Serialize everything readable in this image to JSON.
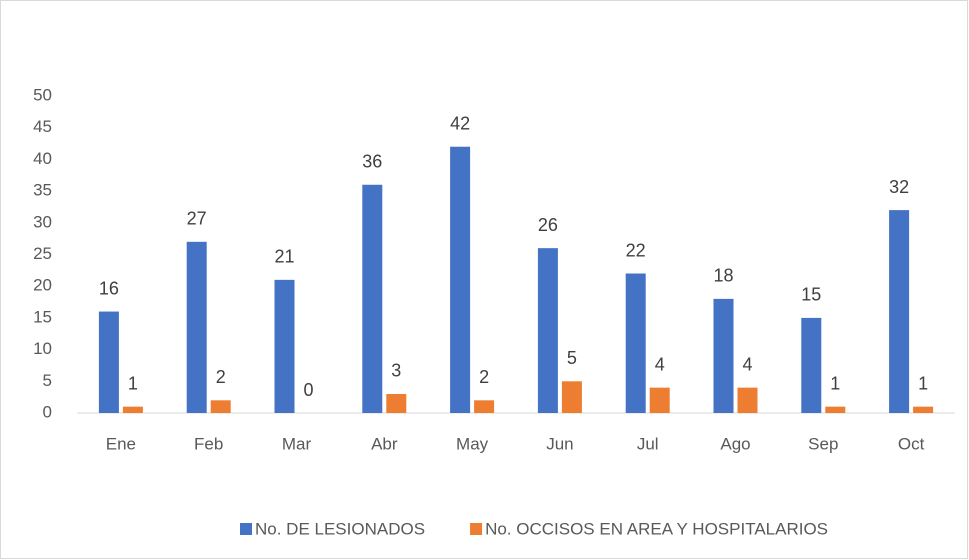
{
  "chart_data": {
    "type": "bar",
    "categories": [
      "Ene",
      "Feb",
      "Mar",
      "Abr",
      "May",
      "Jun",
      "Jul",
      "Ago",
      "Sep",
      "Oct"
    ],
    "series": [
      {
        "name": "No. DE LESIONADOS",
        "color": "#4472c4",
        "values": [
          16,
          27,
          21,
          36,
          42,
          26,
          22,
          18,
          15,
          32
        ]
      },
      {
        "name": "No. OCCISOS EN AREA Y HOSPITALARIOS",
        "color": "#ed7d31",
        "values": [
          1,
          2,
          0,
          3,
          2,
          5,
          4,
          4,
          1,
          1
        ]
      }
    ],
    "ylim": [
      0,
      50
    ],
    "yticks": [
      0,
      5,
      10,
      15,
      20,
      25,
      30,
      35,
      40,
      45,
      50
    ],
    "grid": false,
    "legend": "bottom"
  }
}
